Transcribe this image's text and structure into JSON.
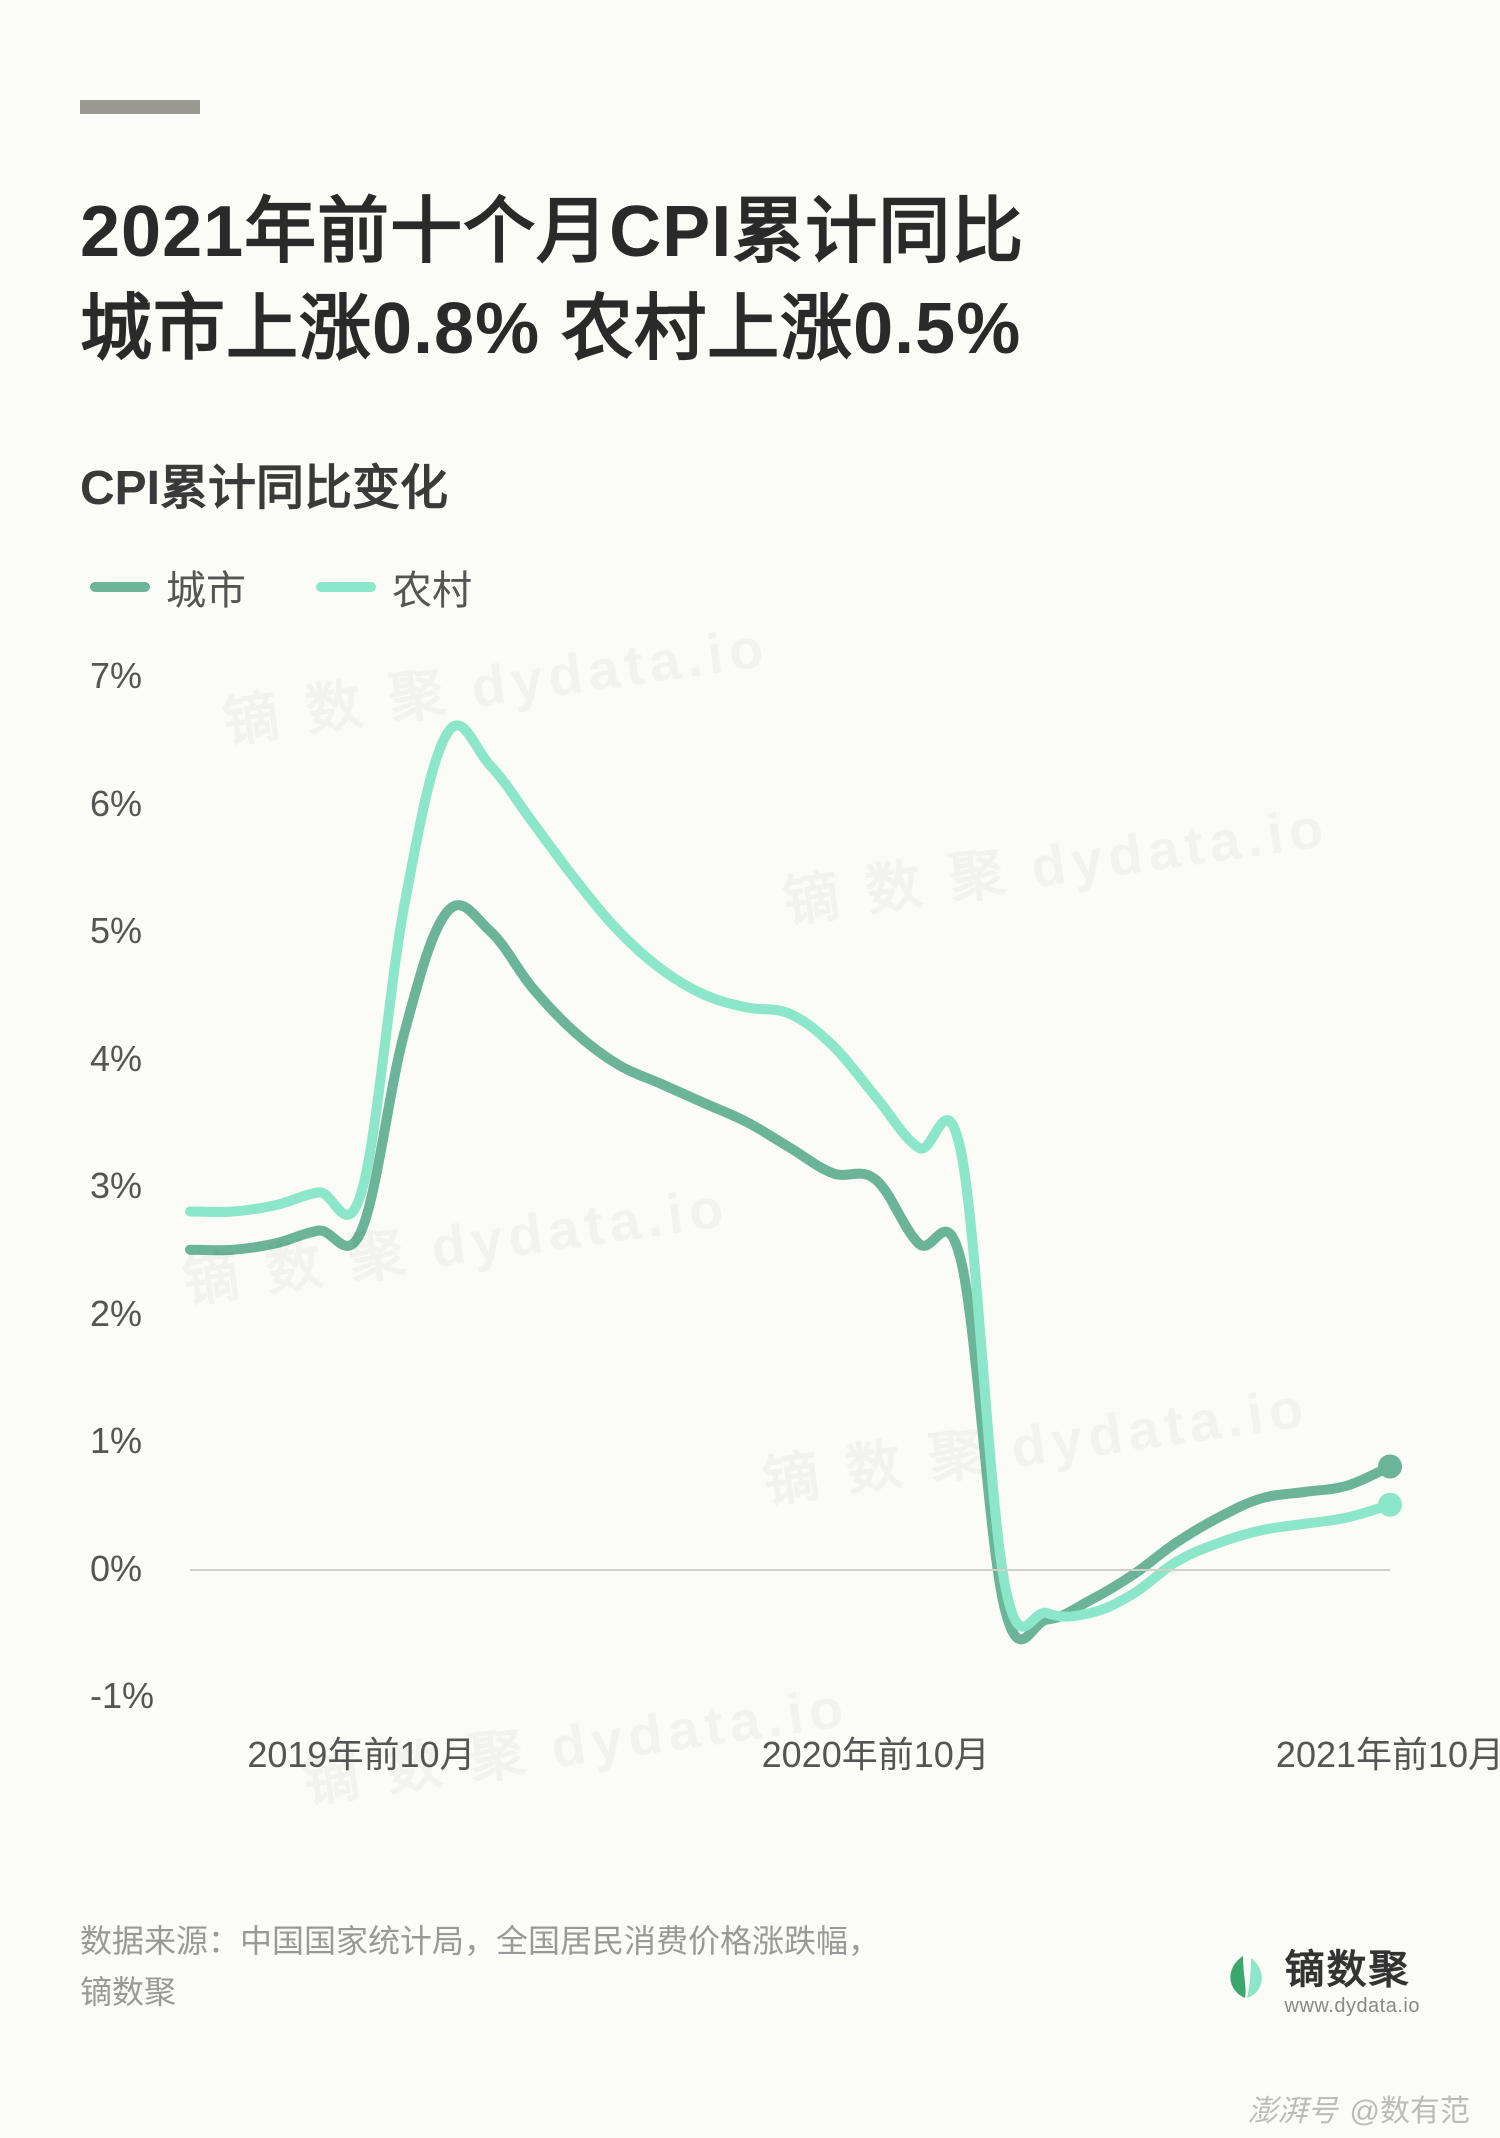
{
  "title": {
    "line1": "2021年前十个月CPI累计同比",
    "line2": "城市上涨0.8%  农村上涨0.5%",
    "fontsize": 72,
    "color": "#2a2a2a"
  },
  "subtitle": {
    "text": "CPI累计同比变化",
    "fontsize": 48,
    "color": "#3a3a3a"
  },
  "accent_bar": {
    "color": "#9a9a92",
    "width": 120,
    "height": 14
  },
  "legend": {
    "items": [
      {
        "label": "城市",
        "color": "#6bb49a"
      },
      {
        "label": "农村",
        "color": "#8ce6c9"
      }
    ],
    "fontsize": 40
  },
  "chart": {
    "type": "line",
    "background_color": "#fbfbf7",
    "grid_color": "#d0d0c8",
    "axis_font_color": "#555",
    "axis_fontsize": 36,
    "ylim": [
      -1,
      7
    ],
    "ytick_step": 1,
    "ytick_labels": [
      "-1%",
      "0%",
      "1%",
      "2%",
      "3%",
      "4%",
      "5%",
      "6%",
      "7%"
    ],
    "xtick_positions": [
      4,
      16,
      28
    ],
    "xtick_labels": [
      "2019年前10月",
      "2020年前10月",
      "2021年前10月"
    ],
    "n_points": 29,
    "line_width": 10,
    "end_marker_radius": 12,
    "series": [
      {
        "name": "城市",
        "color": "#6bb49a",
        "values": [
          2.5,
          2.5,
          2.55,
          2.65,
          2.65,
          4.2,
          5.15,
          5.0,
          4.55,
          4.2,
          3.95,
          3.8,
          3.65,
          3.5,
          3.3,
          3.1,
          3.05,
          2.55,
          2.4,
          -0.3,
          -0.4,
          -0.25,
          -0.05,
          0.2,
          0.4,
          0.55,
          0.6,
          0.65,
          0.8
        ]
      },
      {
        "name": "农村",
        "color": "#8ce6c9",
        "values": [
          2.8,
          2.8,
          2.85,
          2.95,
          2.95,
          5.2,
          6.55,
          6.3,
          5.85,
          5.4,
          5.0,
          4.7,
          4.5,
          4.4,
          4.35,
          4.1,
          3.7,
          3.3,
          3.25,
          -0.1,
          -0.35,
          -0.35,
          -0.2,
          0.05,
          0.2,
          0.3,
          0.35,
          0.4,
          0.5
        ]
      }
    ]
  },
  "source": {
    "text": "数据来源：中国国家统计局，全国居民消费价格涨跌幅，镝数聚",
    "fontsize": 32,
    "color": "#999999"
  },
  "brand": {
    "name": "镝数聚",
    "url": "www.dydata.io",
    "icon_colors": [
      "#3aa76d",
      "#8ce6c9"
    ]
  },
  "watermark_bottom": {
    "left": "澎湃号",
    "right": "@数有范"
  }
}
